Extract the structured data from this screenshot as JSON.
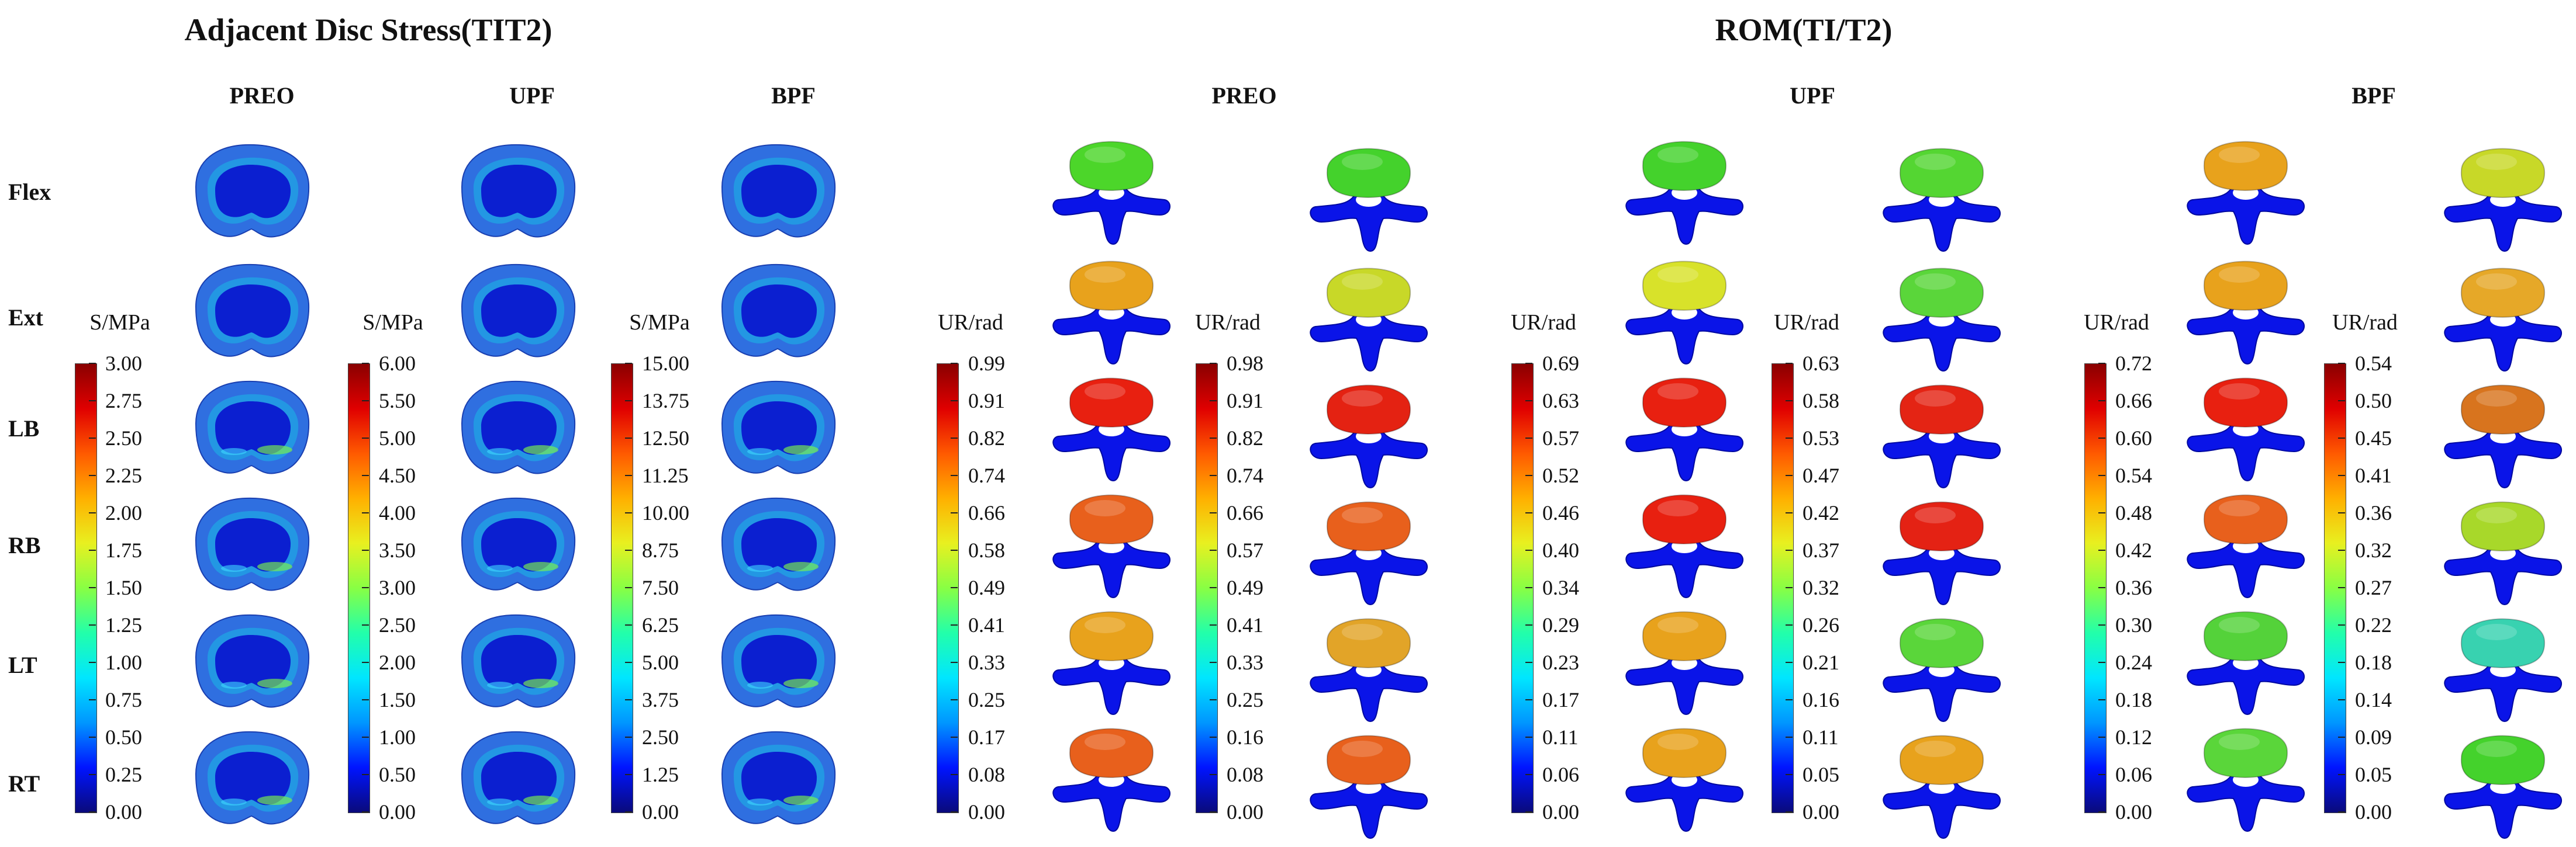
{
  "titles": {
    "stress": "Adjacent Disc Stress(TIT2)",
    "rom": "ROM(TI/T2)"
  },
  "stress_columns": [
    "PREO",
    "UPF",
    "BPF"
  ],
  "rom_columns": [
    "PREO",
    "UPF",
    "BPF"
  ],
  "rows": [
    "Flex",
    "Ext",
    "LB",
    "RB",
    "LT",
    "RT"
  ],
  "colorbars": [
    {
      "unit": "S/MPa",
      "ticks": [
        "3.00",
        "2.75",
        "2.50",
        "2.25",
        "2.00",
        "1.75",
        "1.50",
        "1.25",
        "1.00",
        "0.75",
        "0.50",
        "0.25",
        "0.00"
      ]
    },
    {
      "unit": "S/MPa",
      "ticks": [
        "6.00",
        "5.50",
        "5.00",
        "4.50",
        "4.00",
        "3.50",
        "3.00",
        "2.50",
        "2.00",
        "1.50",
        "1.00",
        "0.50",
        "0.00"
      ]
    },
    {
      "unit": "S/MPa",
      "ticks": [
        "15.00",
        "13.75",
        "12.50",
        "11.25",
        "10.00",
        "8.75",
        "7.50",
        "6.25",
        "5.00",
        "3.75",
        "2.50",
        "1.25",
        "0.00"
      ]
    },
    {
      "unit": "UR/rad",
      "ticks": [
        "0.99",
        "0.91",
        "0.82",
        "0.74",
        "0.66",
        "0.58",
        "0.49",
        "0.41",
        "0.33",
        "0.25",
        "0.17",
        "0.08",
        "0.00"
      ]
    },
    {
      "unit": "UR/rad",
      "ticks": [
        "0.98",
        "0.91",
        "0.82",
        "0.74",
        "0.66",
        "0.57",
        "0.49",
        "0.41",
        "0.33",
        "0.25",
        "0.16",
        "0.08",
        "0.00"
      ]
    },
    {
      "unit": "UR/rad",
      "ticks": [
        "0.69",
        "0.63",
        "0.57",
        "0.52",
        "0.46",
        "0.40",
        "0.34",
        "0.29",
        "0.23",
        "0.17",
        "0.11",
        "0.06",
        "0.00"
      ]
    },
    {
      "unit": "UR/rad",
      "ticks": [
        "0.63",
        "0.58",
        "0.53",
        "0.47",
        "0.42",
        "0.37",
        "0.32",
        "0.26",
        "0.21",
        "0.16",
        "0.11",
        "0.05",
        "0.00"
      ]
    },
    {
      "unit": "UR/rad",
      "ticks": [
        "0.72",
        "0.66",
        "0.60",
        "0.54",
        "0.48",
        "0.42",
        "0.36",
        "0.30",
        "0.24",
        "0.18",
        "0.12",
        "0.06",
        "0.00"
      ]
    },
    {
      "unit": "UR/rad",
      "ticks": [
        "0.54",
        "0.50",
        "0.45",
        "0.41",
        "0.36",
        "0.32",
        "0.27",
        "0.22",
        "0.18",
        "0.14",
        "0.09",
        "0.05",
        "0.00"
      ]
    }
  ],
  "colors": {
    "disc_outer": "#2f6fe0",
    "disc_inner": "#0b1fd0",
    "vertebra_body": "#0a14e8",
    "colormap": [
      "#0a0a7a",
      "#0014ff",
      "#0096ff",
      "#00e6ff",
      "#22ffaa",
      "#88ff44",
      "#e8f020",
      "#ffb000",
      "#ff5a00",
      "#e00000",
      "#8a0000"
    ]
  },
  "vertebra_colors": [
    [
      "#4cd62a",
      "#44d22c",
      "#44d22c",
      "#54d632",
      "#e8a21c",
      "#c8d828"
    ],
    [
      "#e8a21c",
      "#c8d828",
      "#d8e22a",
      "#5ad63a",
      "#e8a21c",
      "#e6a828"
    ],
    [
      "#e82010",
      "#e42212",
      "#e82010",
      "#e42414",
      "#e82010",
      "#d8741e"
    ],
    [
      "#e8601c",
      "#e8601c",
      "#e82010",
      "#e42214",
      "#e8601c",
      "#a8d82a"
    ],
    [
      "#e8a21c",
      "#e2a428",
      "#e8a21c",
      "#5ad63a",
      "#54d23a",
      "#38d2b0"
    ],
    [
      "#e8601c",
      "#e8601c",
      "#e8a21c",
      "#e8a21c",
      "#5ad63a",
      "#44d22c"
    ]
  ]
}
